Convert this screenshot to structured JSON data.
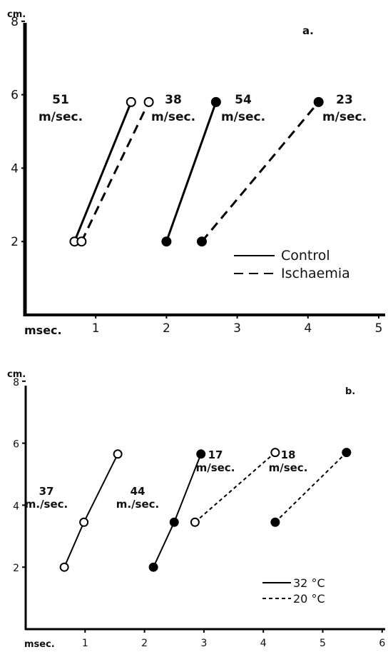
{
  "chart_data": [
    {
      "type": "line",
      "panel_label": "a.",
      "x_unit": "msec.",
      "y_unit": "cm.",
      "xlim": [
        0,
        5
      ],
      "ylim": [
        0,
        8
      ],
      "x_ticks": [
        "1",
        "2",
        "3",
        "4",
        "5"
      ],
      "y_ticks": [
        "2",
        "4",
        "6",
        "8"
      ],
      "legend": {
        "placement": "bottom-right",
        "entries": [
          {
            "label": "Control",
            "style": "solid"
          },
          {
            "label": "Ischaemia",
            "style": "dashed"
          }
        ]
      },
      "series": [
        {
          "style": "solid",
          "marker": "open",
          "rate_lines": [
            "51",
            "m/sec."
          ],
          "points": [
            {
              "x": 0.7,
              "y": 2
            },
            {
              "x": 1.5,
              "y": 5.8
            }
          ]
        },
        {
          "style": "dashed",
          "marker": "open",
          "rate_lines": [
            "38",
            "m/sec."
          ],
          "points": [
            {
              "x": 0.8,
              "y": 2
            },
            {
              "x": 1.75,
              "y": 5.8
            }
          ]
        },
        {
          "style": "solid",
          "marker": "filled",
          "rate_lines": [
            "54",
            "m/sec."
          ],
          "points": [
            {
              "x": 2.0,
              "y": 2
            },
            {
              "x": 2.7,
              "y": 5.8
            }
          ]
        },
        {
          "style": "dashed",
          "marker": "filled",
          "rate_lines": [
            "23",
            "m/sec."
          ],
          "points": [
            {
              "x": 2.5,
              "y": 2
            },
            {
              "x": 4.15,
              "y": 5.8
            }
          ]
        }
      ]
    },
    {
      "type": "line",
      "panel_label": "b.",
      "x_unit": "msec.",
      "y_unit": "cm.",
      "xlim": [
        0,
        6
      ],
      "ylim": [
        0,
        8
      ],
      "x_ticks": [
        "1",
        "2",
        "3",
        "4",
        "5",
        "6"
      ],
      "y_ticks": [
        "2",
        "4",
        "6",
        "8"
      ],
      "legend": {
        "placement": "bottom-right",
        "entries": [
          {
            "label": "32 °C",
            "style": "solid"
          },
          {
            "label": "20 °C",
            "style": "dotted"
          }
        ]
      },
      "series": [
        {
          "style": "solid",
          "marker": "open",
          "rate_lines": [
            "37",
            "m./sec."
          ],
          "points": [
            {
              "x": 0.65,
              "y": 2
            },
            {
              "x": 0.98,
              "y": 3.45
            },
            {
              "x": 1.55,
              "y": 5.65
            }
          ]
        },
        {
          "style": "solid",
          "marker": "filled",
          "rate_lines": [
            "44",
            "m./sec."
          ],
          "points": [
            {
              "x": 2.15,
              "y": 2
            },
            {
              "x": 2.5,
              "y": 3.45
            },
            {
              "x": 2.95,
              "y": 5.65
            }
          ]
        },
        {
          "style": "dotted",
          "marker": "open",
          "rate_lines": [
            "17",
            "m/sec."
          ],
          "points": [
            {
              "x": 2.85,
              "y": 3.45
            },
            {
              "x": 4.2,
              "y": 5.7
            }
          ]
        },
        {
          "style": "dotted",
          "marker": "filled",
          "rate_lines": [
            "18",
            "m/sec."
          ],
          "points": [
            {
              "x": 4.2,
              "y": 3.45
            },
            {
              "x": 5.4,
              "y": 5.7
            }
          ]
        }
      ]
    }
  ]
}
